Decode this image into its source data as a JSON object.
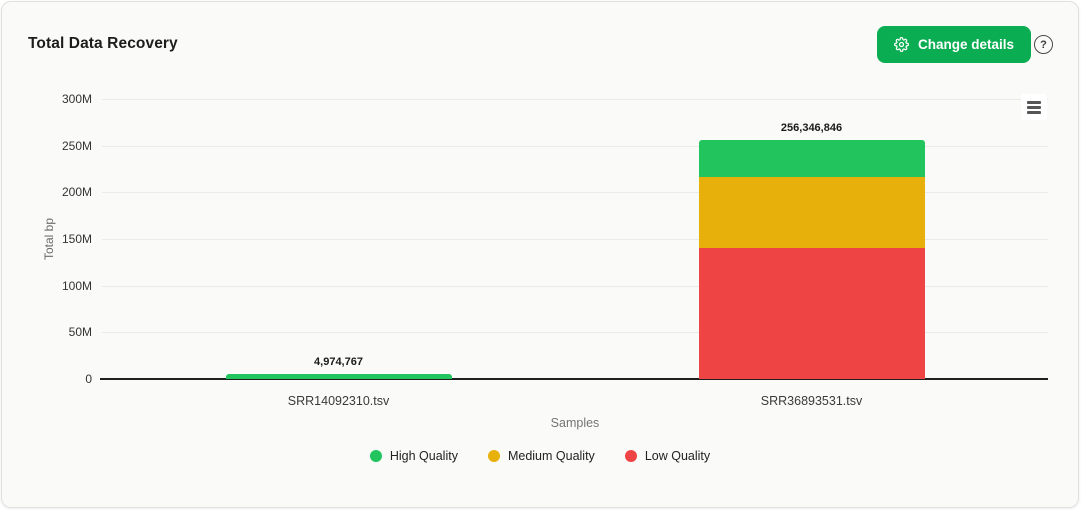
{
  "header": {
    "title": "Total Data Recovery",
    "change_details_button": "Change details",
    "help_icon": "?"
  },
  "icons": {
    "gear": "settings-gear",
    "help": "question-mark-circle",
    "chart_menu": "hamburger-menu"
  },
  "colors": {
    "button_green": "#0bad52",
    "high_quality": "#21c45d",
    "medium_quality": "#e8b00a",
    "low_quality": "#ef4444",
    "card_background": "#fafbf8",
    "gridline": "#e9ebe7",
    "axis_line": "#1f1f1f"
  },
  "chart_data": {
    "type": "bar",
    "stacked": true,
    "title": "",
    "categories": [
      "SRR14092310.tsv",
      "SRR36893531.tsv"
    ],
    "series": [
      {
        "name": "High Quality",
        "color": "#21c45d",
        "values": [
          4974767,
          39800000
        ]
      },
      {
        "name": "Medium Quality",
        "color": "#e8b00a",
        "values": [
          0,
          76400000
        ]
      },
      {
        "name": "Low Quality",
        "color": "#ef4444",
        "values": [
          0,
          140146846
        ]
      }
    ],
    "stack_totals": [
      4974767,
      256346846
    ],
    "total_labels": [
      "4,974,767",
      "256,346,846"
    ],
    "xlabel": "Samples",
    "ylabel": "Total bp",
    "ylim": [
      0,
      300000000
    ],
    "ytick_step": 50000000,
    "ytick_labels": [
      "0",
      "50M",
      "100M",
      "150M",
      "200M",
      "250M",
      "300M"
    ],
    "grid": true,
    "legend_position": "bottom",
    "legend": [
      "High Quality",
      "Medium Quality",
      "Low Quality"
    ]
  }
}
